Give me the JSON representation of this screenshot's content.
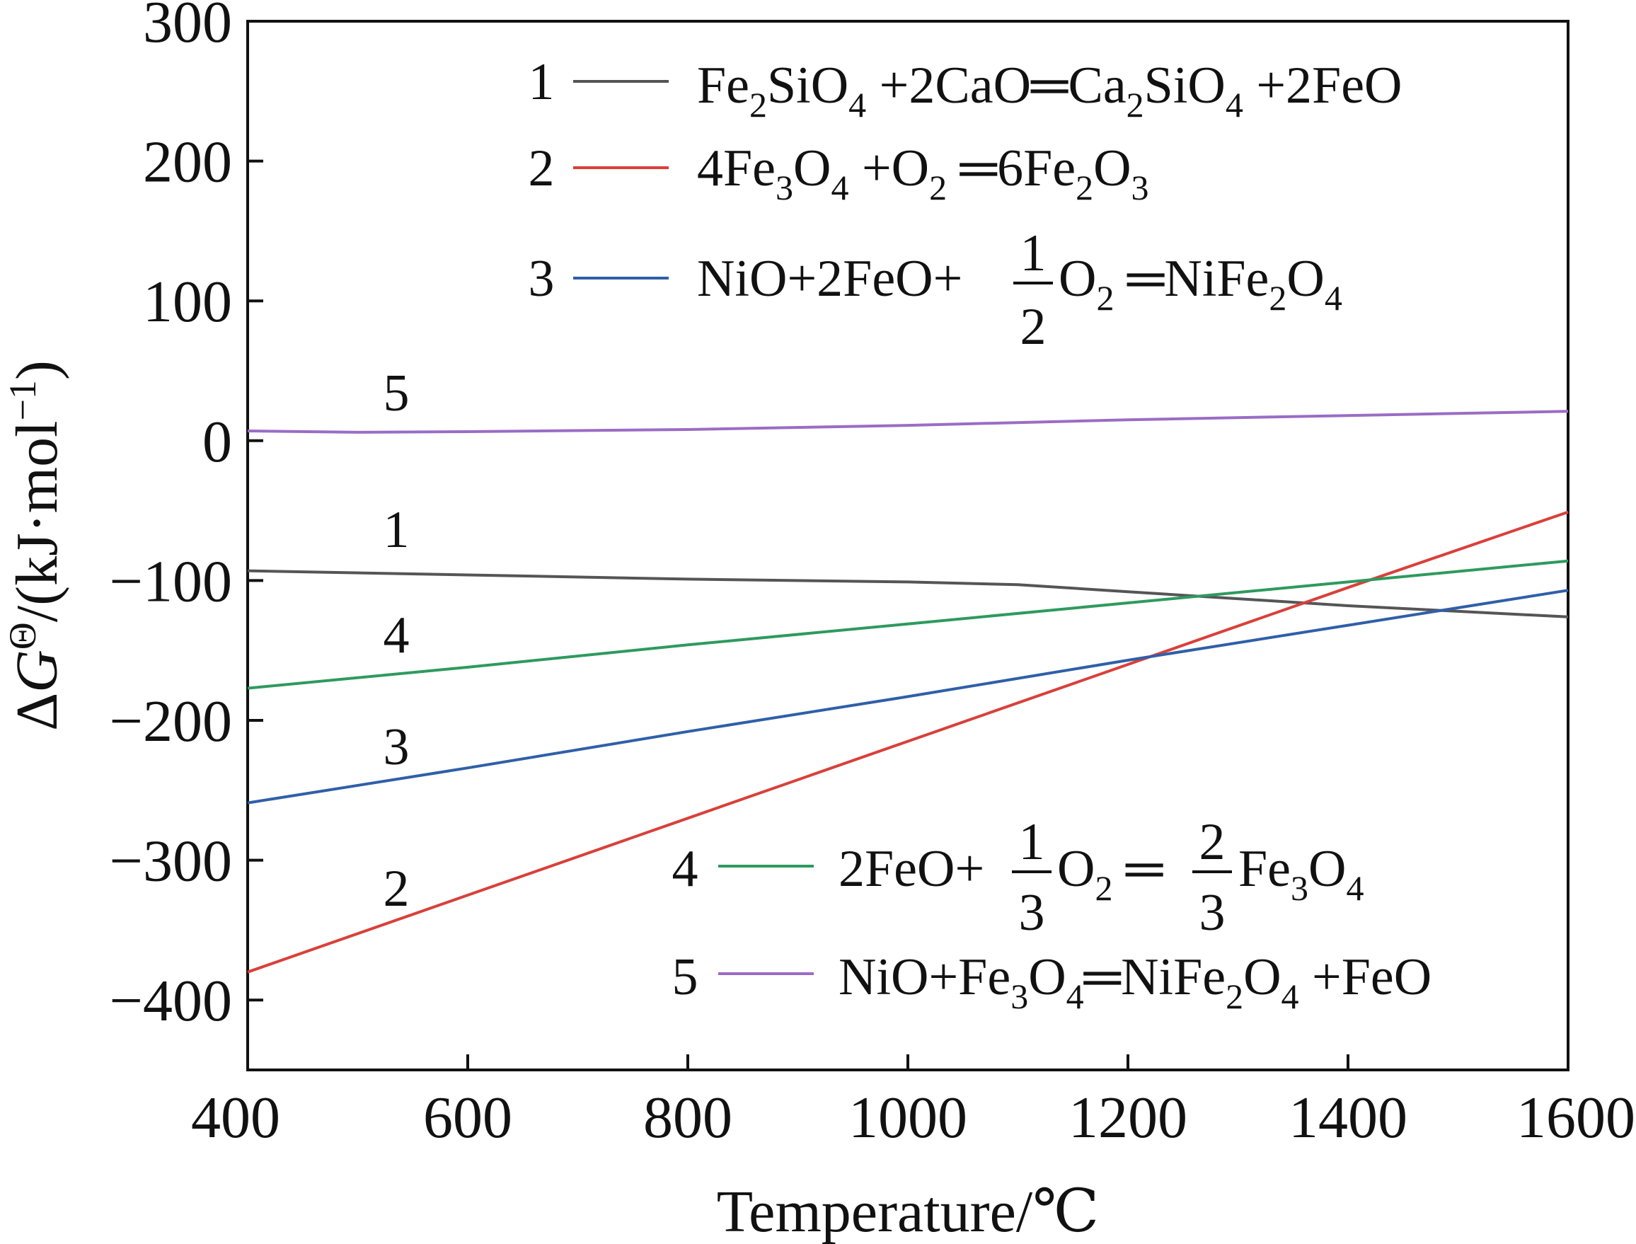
{
  "chart_data": {
    "type": "line",
    "xlabel": "Temperature/℃",
    "ylabel": "ΔGΘ/(kJ·mol−1)",
    "ylabel_parts": {
      "a": "Δ",
      "b": "G",
      "c": "Θ",
      "d": "/(kJ·mol",
      "e": "−1",
      "f": ")"
    },
    "xlim": [
      400,
      1600
    ],
    "ylim": [
      -450,
      300
    ],
    "xticks": [
      400,
      600,
      800,
      1000,
      1200,
      1400,
      1600
    ],
    "xtick_labels": [
      "400",
      "600",
      "800",
      "1000",
      "1200",
      "1400",
      "1600"
    ],
    "yticks": [
      300,
      200,
      100,
      0,
      -100,
      -200,
      -300,
      -400
    ],
    "ytick_labels": [
      "300",
      "200",
      "100",
      "0",
      "−100",
      "−200",
      "−300",
      "−400"
    ],
    "grid": false,
    "legend_placement": "top-right and bottom-right",
    "series": [
      {
        "id": "1",
        "label": "1",
        "color": "#555555",
        "equation": {
          "a": "Fe",
          "b": "2",
          "c": "SiO",
          "d": "4",
          "e": " +2CaO═Ca",
          "f": "2",
          "g": "SiO",
          "h": "4",
          "i": " +2FeO"
        },
        "x": [
          400,
          600,
          800,
          1000,
          1100,
          1200,
          1300,
          1400,
          1500,
          1600
        ],
        "y": [
          -93,
          -96,
          -99,
          -101,
          -103,
          -108,
          -113,
          -118,
          -122,
          -126
        ]
      },
      {
        "id": "2",
        "label": "2",
        "color": "#d9403a",
        "equation": {
          "a": "4Fe",
          "b": "3",
          "c": "O",
          "d": "4",
          "e": " +O",
          "f": "2",
          "g": " ═6Fe",
          "h": "2",
          "i": "O",
          "j": "3"
        },
        "x": [
          400,
          600,
          800,
          1000,
          1200,
          1400,
          1600
        ],
        "y": [
          -380,
          -325,
          -270,
          -215,
          -160,
          -105,
          -51
        ]
      },
      {
        "id": "3",
        "label": "3",
        "color": "#2f5fa8",
        "equation": {
          "a": "NiO+2FeO+",
          "num": "1",
          "den": "2",
          "b": "O",
          "c": "2",
          "d": " ═NiFe",
          "e": "2",
          "f": "O",
          "g": "4"
        },
        "x": [
          400,
          600,
          800,
          1000,
          1200,
          1400,
          1600
        ],
        "y": [
          -259,
          -234,
          -208,
          -183,
          -157,
          -132,
          -107
        ]
      },
      {
        "id": "4",
        "label": "4",
        "color": "#2e9a5e",
        "equation": {
          "a": "2FeO+",
          "num1": "1",
          "den1": "3",
          "b": "O",
          "c": "2",
          "d": " ═ ",
          "num2": "2",
          "den2": "3",
          "e": "Fe",
          "f": "3",
          "g": "O",
          "h": "4"
        },
        "x": [
          400,
          600,
          800,
          1000,
          1200,
          1400,
          1600
        ],
        "y": [
          -177,
          -162,
          -146,
          -131,
          -116,
          -101,
          -86
        ]
      },
      {
        "id": "5",
        "label": "5",
        "color": "#9b6cc4",
        "equation": {
          "a": "NiO+Fe",
          "b": "3",
          "c": "O",
          "d": "4",
          "e": "═NiFe",
          "f": "2",
          "g": "O",
          "h": "4",
          "i": " +FeO"
        },
        "x": [
          400,
          500,
          600,
          800,
          1000,
          1200,
          1400,
          1600
        ],
        "y": [
          7,
          6,
          6.5,
          8,
          11,
          15,
          18,
          21
        ]
      }
    ]
  }
}
